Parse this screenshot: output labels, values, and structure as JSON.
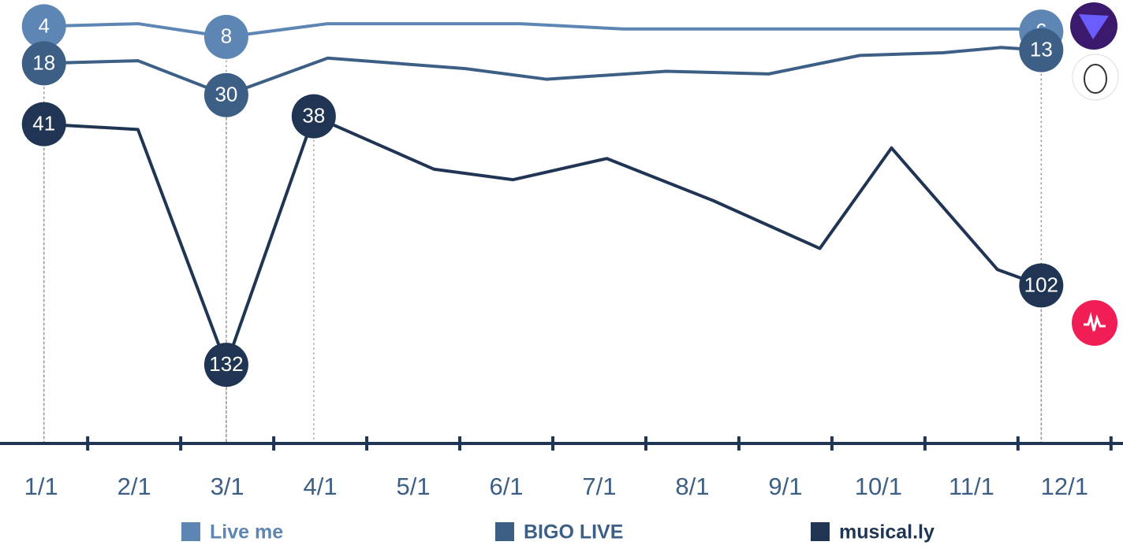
{
  "chart_data": {
    "type": "line",
    "xticks": [
      {
        "value": 1,
        "label": "1/1"
      },
      {
        "value": 2,
        "label": "2/1"
      },
      {
        "value": 3,
        "label": "3/1"
      },
      {
        "value": 4,
        "label": "4/1"
      },
      {
        "value": 5,
        "label": "5/1"
      },
      {
        "value": 6,
        "label": "6/1"
      },
      {
        "value": 7,
        "label": "7/1"
      },
      {
        "value": 8,
        "label": "8/1"
      },
      {
        "value": 9,
        "label": "9/1"
      },
      {
        "value": 10,
        "label": "10/1"
      },
      {
        "value": 11,
        "label": "11/1"
      },
      {
        "value": 12,
        "label": "12/1"
      }
    ],
    "xlim": [
      0.6,
      12.4
    ],
    "ylim": [
      0,
      140
    ],
    "y_inverted": true,
    "legend": "bottom",
    "series": [
      {
        "name": "Live me",
        "color": "#5e86b4",
        "x": [
          1.03,
          2.04,
          2.99,
          4.08,
          6.15,
          7.25,
          11.49,
          11.75
        ],
        "values": [
          4,
          3,
          8,
          3,
          3,
          5,
          5,
          6
        ],
        "labeled": [
          0,
          2,
          7
        ]
      },
      {
        "name": "BIGO LIVE",
        "color": "#3d5f86",
        "x": [
          1.03,
          2.04,
          2.99,
          4.08,
          5.56,
          6.43,
          7.72,
          8.82,
          9.8,
          10.69,
          11.32,
          11.75
        ],
        "values": [
          18,
          17,
          30,
          16,
          20,
          24,
          21,
          22,
          15,
          14,
          12,
          13
        ],
        "labeled": [
          0,
          2,
          11
        ]
      },
      {
        "name": "musical.ly",
        "color": "#1f3553",
        "x": [
          1.03,
          2.04,
          2.99,
          3.93,
          5.22,
          6.07,
          7.08,
          8.23,
          9.37,
          10.14,
          11.28,
          11.75
        ],
        "values": [
          41,
          43,
          132,
          38,
          58,
          62,
          54,
          70,
          88,
          50,
          96,
          102
        ],
        "labeled": [
          0,
          2,
          3,
          11
        ]
      }
    ]
  }
}
